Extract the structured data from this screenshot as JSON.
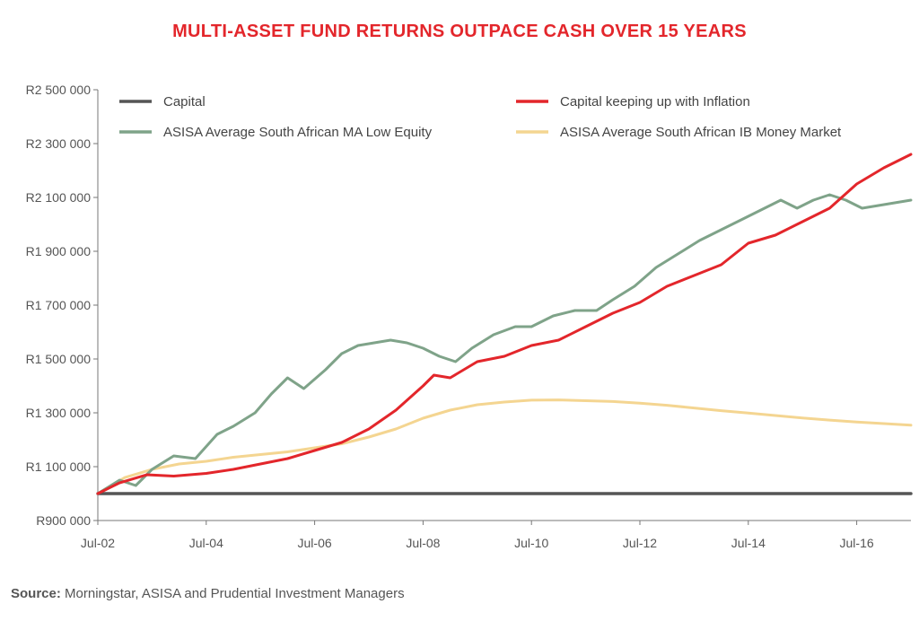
{
  "title": "MULTI-ASSET FUND RETURNS OUTPACE CASH OVER 15 YEARS",
  "source": {
    "label": "Source:",
    "text": "Morningstar, ASISA and Prudential Investment Managers"
  },
  "chart_data": {
    "type": "line",
    "x_ticks": [
      "Jul-02",
      "Jul-04",
      "Jul-06",
      "Jul-08",
      "Jul-10",
      "Jul-12",
      "Jul-14",
      "Jul-16"
    ],
    "y_ticks": [
      "R2 500 000",
      "R2 300 000",
      "R2 100 000",
      "R1 900 000",
      "R1 700 000",
      "R1 500 000",
      "R1 300 000",
      "R1 100 000",
      "R900 000"
    ],
    "xlim": [
      2002.5,
      2017.5
    ],
    "ylim": [
      900000,
      2500000
    ],
    "grid": false,
    "legend_position": "top",
    "series": [
      {
        "name": "Capital",
        "color": "#555555",
        "points": [
          [
            2002.5,
            1000000
          ],
          [
            2017.5,
            1000000
          ]
        ]
      },
      {
        "name": "Capital keeping up with Inflation",
        "color": "#e3262b",
        "points": [
          [
            2002.5,
            1000000
          ],
          [
            2002.9,
            1040000
          ],
          [
            2003.4,
            1070000
          ],
          [
            2003.9,
            1065000
          ],
          [
            2004.5,
            1075000
          ],
          [
            2005.0,
            1090000
          ],
          [
            2005.5,
            1110000
          ],
          [
            2006.0,
            1130000
          ],
          [
            2006.5,
            1160000
          ],
          [
            2007.0,
            1190000
          ],
          [
            2007.5,
            1240000
          ],
          [
            2008.0,
            1310000
          ],
          [
            2008.5,
            1400000
          ],
          [
            2008.7,
            1440000
          ],
          [
            2009.0,
            1430000
          ],
          [
            2009.5,
            1490000
          ],
          [
            2010.0,
            1510000
          ],
          [
            2010.5,
            1550000
          ],
          [
            2011.0,
            1570000
          ],
          [
            2011.5,
            1620000
          ],
          [
            2012.0,
            1670000
          ],
          [
            2012.5,
            1710000
          ],
          [
            2013.0,
            1770000
          ],
          [
            2013.5,
            1810000
          ],
          [
            2014.0,
            1850000
          ],
          [
            2014.5,
            1930000
          ],
          [
            2015.0,
            1960000
          ],
          [
            2015.5,
            2010000
          ],
          [
            2016.0,
            2060000
          ],
          [
            2016.5,
            2150000
          ],
          [
            2017.0,
            2210000
          ],
          [
            2017.5,
            2260000
          ]
        ]
      },
      {
        "name": "ASISA Average South African MA Low Equity",
        "color": "#7fa389",
        "points": [
          [
            2002.5,
            1000000
          ],
          [
            2002.9,
            1050000
          ],
          [
            2003.2,
            1030000
          ],
          [
            2003.5,
            1090000
          ],
          [
            2003.9,
            1140000
          ],
          [
            2004.3,
            1130000
          ],
          [
            2004.7,
            1220000
          ],
          [
            2005.0,
            1250000
          ],
          [
            2005.4,
            1300000
          ],
          [
            2005.7,
            1370000
          ],
          [
            2006.0,
            1430000
          ],
          [
            2006.3,
            1390000
          ],
          [
            2006.7,
            1460000
          ],
          [
            2007.0,
            1520000
          ],
          [
            2007.3,
            1550000
          ],
          [
            2007.6,
            1560000
          ],
          [
            2007.9,
            1570000
          ],
          [
            2008.2,
            1560000
          ],
          [
            2008.5,
            1540000
          ],
          [
            2008.8,
            1510000
          ],
          [
            2009.1,
            1490000
          ],
          [
            2009.4,
            1540000
          ],
          [
            2009.8,
            1590000
          ],
          [
            2010.2,
            1620000
          ],
          [
            2010.5,
            1620000
          ],
          [
            2010.9,
            1660000
          ],
          [
            2011.3,
            1680000
          ],
          [
            2011.7,
            1680000
          ],
          [
            2012.0,
            1720000
          ],
          [
            2012.4,
            1770000
          ],
          [
            2012.8,
            1840000
          ],
          [
            2013.2,
            1890000
          ],
          [
            2013.6,
            1940000
          ],
          [
            2014.0,
            1980000
          ],
          [
            2014.4,
            2020000
          ],
          [
            2014.8,
            2060000
          ],
          [
            2015.1,
            2090000
          ],
          [
            2015.4,
            2060000
          ],
          [
            2015.7,
            2090000
          ],
          [
            2016.0,
            2110000
          ],
          [
            2016.3,
            2090000
          ],
          [
            2016.6,
            2060000
          ],
          [
            2016.9,
            2070000
          ],
          [
            2017.2,
            2080000
          ],
          [
            2017.5,
            2090000
          ]
        ]
      },
      {
        "name": "ASISA Average South African IB Money Market",
        "color": "#f4d591",
        "points": [
          [
            2002.5,
            1000000
          ],
          [
            2003.0,
            1060000
          ],
          [
            2003.5,
            1090000
          ],
          [
            2004.0,
            1110000
          ],
          [
            2004.5,
            1120000
          ],
          [
            2005.0,
            1135000
          ],
          [
            2005.5,
            1145000
          ],
          [
            2006.0,
            1155000
          ],
          [
            2006.5,
            1170000
          ],
          [
            2007.0,
            1185000
          ],
          [
            2007.5,
            1210000
          ],
          [
            2008.0,
            1240000
          ],
          [
            2008.5,
            1280000
          ],
          [
            2009.0,
            1310000
          ],
          [
            2009.5,
            1330000
          ],
          [
            2010.0,
            1340000
          ],
          [
            2010.5,
            1347000
          ],
          [
            2011.0,
            1348000
          ],
          [
            2011.5,
            1345000
          ],
          [
            2012.0,
            1342000
          ],
          [
            2012.5,
            1336000
          ],
          [
            2013.0,
            1328000
          ],
          [
            2013.5,
            1318000
          ],
          [
            2014.0,
            1308000
          ],
          [
            2014.5,
            1299000
          ],
          [
            2015.0,
            1290000
          ],
          [
            2015.5,
            1281000
          ],
          [
            2016.0,
            1273000
          ],
          [
            2016.5,
            1266000
          ],
          [
            2017.0,
            1260000
          ],
          [
            2017.5,
            1254000
          ]
        ]
      }
    ]
  }
}
